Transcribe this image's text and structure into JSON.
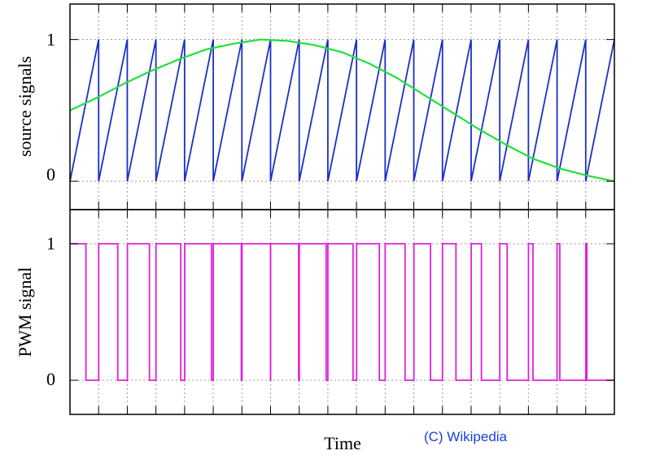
{
  "chart_data": [
    {
      "type": "line",
      "ylabel": "source signals",
      "ylim": [
        -0.2,
        1.25
      ],
      "ytick_labels": [
        "0",
        "1"
      ],
      "grid": true,
      "x_period_count": 19,
      "series": [
        {
          "style": "sawtooth",
          "color": "#1a2fc8",
          "periods": 19,
          "amplitude": [
            0,
            1
          ]
        },
        {
          "style": "sine",
          "color": "#22e03a",
          "x": [
            0.0,
            0.05,
            0.1,
            0.15,
            0.2,
            0.25,
            0.3,
            0.35,
            0.4,
            0.45,
            0.5,
            0.55,
            0.6,
            0.65,
            0.7,
            0.75,
            0.8,
            0.85,
            0.9,
            0.95,
            1.0
          ],
          "y": [
            0.5,
            0.59,
            0.69,
            0.78,
            0.86,
            0.93,
            0.97,
            1.0,
            0.99,
            0.96,
            0.91,
            0.83,
            0.73,
            0.61,
            0.49,
            0.37,
            0.26,
            0.16,
            0.09,
            0.04,
            0.0
          ]
        }
      ]
    },
    {
      "type": "line",
      "ylabel": "PWM signal",
      "xlabel": "Time",
      "ylim": [
        -0.25,
        1.25
      ],
      "ytick_labels": [
        "0",
        "1"
      ],
      "grid": true,
      "series": [
        {
          "style": "step",
          "color": "#e020d8",
          "derived_from": "sine > sawtooth"
        }
      ]
    }
  ],
  "credit": "(C) Wikipedia"
}
